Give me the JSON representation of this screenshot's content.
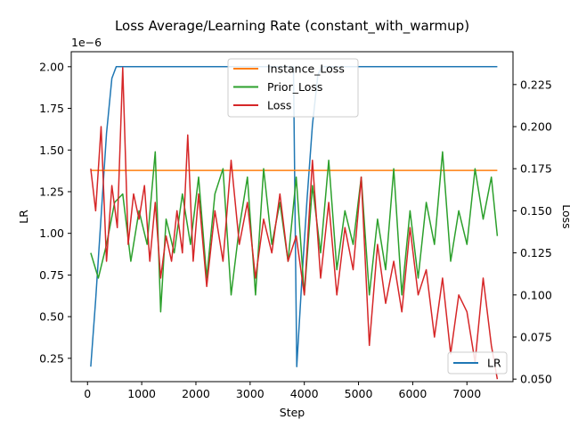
{
  "chart_data": {
    "type": "line",
    "title": "Loss Average/Learning Rate (constant_with_warmup)",
    "xlabel": "Step",
    "ylabel_left": "LR",
    "ylabel_right": "Loss",
    "left_axis_offset_label": "1e−6",
    "xlim": [
      -300,
      7850
    ],
    "ylim_left": [
      0.11,
      2.09
    ],
    "ylim_right": [
      0.0485,
      0.2445
    ],
    "x_ticks": [
      0,
      1000,
      2000,
      3000,
      4000,
      5000,
      6000,
      7000
    ],
    "x_tick_labels": [
      "0",
      "1000",
      "2000",
      "3000",
      "4000",
      "5000",
      "6000",
      "7000"
    ],
    "y_left_ticks": [
      0.25,
      0.5,
      0.75,
      1.0,
      1.25,
      1.5,
      1.75,
      2.0
    ],
    "y_left_tick_labels": [
      "0.25",
      "0.50",
      "0.75",
      "1.00",
      "1.25",
      "1.50",
      "1.75",
      "2.00"
    ],
    "y_right_ticks": [
      0.05,
      0.075,
      0.1,
      0.125,
      0.15,
      0.175,
      0.2,
      0.225
    ],
    "y_right_tick_labels": [
      "0.050",
      "0.075",
      "0.100",
      "0.125",
      "0.150",
      "0.175",
      "0.200",
      "0.225"
    ],
    "grid": false,
    "legend_right_axis": {
      "placement": "upper center",
      "entries": [
        "Instance_Loss",
        "Prior_Loss",
        "Loss"
      ]
    },
    "legend_left_axis": {
      "placement": "lower right",
      "entries": [
        "LR"
      ]
    },
    "series": [
      {
        "name": "LR",
        "axis": "left",
        "color": "#1f77b4",
        "x": [
          60,
          150,
          250,
          350,
          450,
          530,
          1000,
          2000,
          3000,
          3800,
          3860,
          3950,
          4050,
          4150,
          4250,
          4320,
          5000,
          6000,
          7000,
          7560
        ],
        "y": [
          0.2,
          0.6,
          1.1,
          1.6,
          1.93,
          2.0,
          2.0,
          2.0,
          2.0,
          2.0,
          0.2,
          0.7,
          1.2,
          1.65,
          1.95,
          2.0,
          2.0,
          2.0,
          2.0,
          2.0
        ]
      },
      {
        "name": "Instance_Loss",
        "axis": "right",
        "color": "#ff7f0e",
        "x": [
          60,
          7560
        ],
        "y": [
          0.174,
          0.174
        ]
      },
      {
        "name": "Prior_Loss",
        "axis": "right",
        "color": "#2ca02c",
        "x": [
          60,
          200,
          350,
          500,
          650,
          800,
          950,
          1100,
          1250,
          1350,
          1450,
          1600,
          1750,
          1900,
          2050,
          2200,
          2350,
          2500,
          2650,
          2800,
          2950,
          3100,
          3250,
          3400,
          3550,
          3700,
          3850,
          4000,
          4150,
          4300,
          4450,
          4600,
          4750,
          4900,
          5050,
          5200,
          5350,
          5500,
          5650,
          5800,
          5950,
          6100,
          6250,
          6400,
          6550,
          6700,
          6850,
          7000,
          7150,
          7300,
          7450,
          7560
        ],
        "y": [
          0.125,
          0.11,
          0.13,
          0.155,
          0.16,
          0.12,
          0.15,
          0.13,
          0.185,
          0.09,
          0.145,
          0.125,
          0.16,
          0.13,
          0.17,
          0.11,
          0.16,
          0.175,
          0.1,
          0.14,
          0.17,
          0.1,
          0.175,
          0.13,
          0.155,
          0.12,
          0.17,
          0.1,
          0.165,
          0.125,
          0.18,
          0.115,
          0.15,
          0.13,
          0.17,
          0.1,
          0.145,
          0.115,
          0.175,
          0.1,
          0.15,
          0.11,
          0.155,
          0.13,
          0.185,
          0.12,
          0.15,
          0.13,
          0.175,
          0.145,
          0.17,
          0.135
        ]
      },
      {
        "name": "Loss",
        "axis": "right",
        "color": "#d62728",
        "x": [
          60,
          150,
          250,
          350,
          450,
          550,
          650,
          750,
          850,
          950,
          1050,
          1150,
          1250,
          1350,
          1450,
          1550,
          1650,
          1750,
          1850,
          1950,
          2050,
          2200,
          2350,
          2500,
          2650,
          2800,
          2950,
          3100,
          3250,
          3400,
          3550,
          3700,
          3850,
          4000,
          4150,
          4300,
          4450,
          4600,
          4750,
          4900,
          5050,
          5200,
          5350,
          5500,
          5650,
          5800,
          5950,
          6100,
          6250,
          6400,
          6550,
          6700,
          6850,
          7000,
          7150,
          7300,
          7450,
          7560
        ],
        "y": [
          0.175,
          0.15,
          0.2,
          0.12,
          0.165,
          0.14,
          0.235,
          0.13,
          0.16,
          0.145,
          0.165,
          0.12,
          0.155,
          0.11,
          0.135,
          0.12,
          0.15,
          0.125,
          0.195,
          0.12,
          0.16,
          0.105,
          0.15,
          0.12,
          0.18,
          0.13,
          0.155,
          0.11,
          0.145,
          0.125,
          0.16,
          0.12,
          0.135,
          0.1,
          0.18,
          0.11,
          0.155,
          0.1,
          0.14,
          0.115,
          0.17,
          0.07,
          0.13,
          0.095,
          0.12,
          0.09,
          0.14,
          0.1,
          0.115,
          0.075,
          0.11,
          0.065,
          0.1,
          0.09,
          0.06,
          0.11,
          0.07,
          0.05
        ]
      }
    ]
  }
}
